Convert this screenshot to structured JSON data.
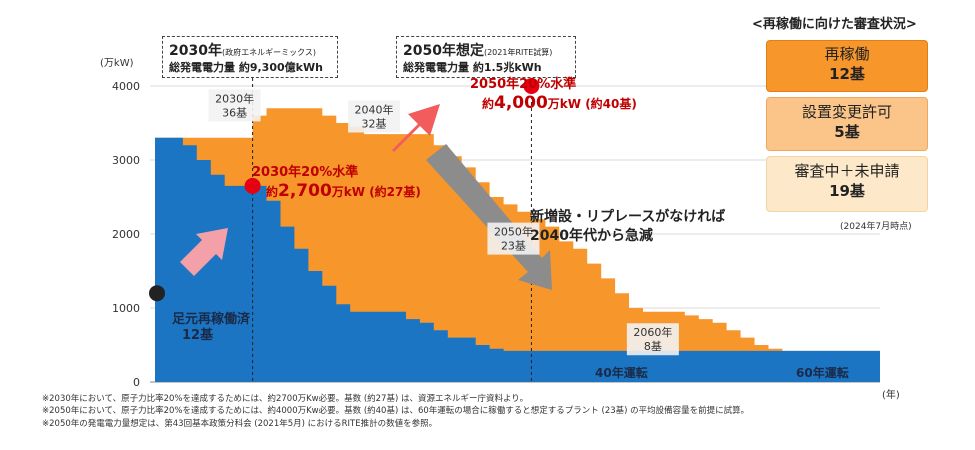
{
  "chart_data": {
    "type": "area",
    "ylabel": "(万kW)",
    "xlabel": "(年)",
    "ylim": [
      0,
      4000
    ],
    "yticks": [
      0,
      1000,
      2000,
      3000,
      4000
    ],
    "grid": true,
    "series": [
      {
        "name": "40年運転",
        "color": "#1b75c2",
        "x": [
          2023,
          2024,
          2025,
          2026,
          2027,
          2028,
          2029,
          2030,
          2031,
          2032,
          2033,
          2034,
          2035,
          2036,
          2037,
          2038,
          2039,
          2040,
          2041,
          2042,
          2043,
          2044,
          2045,
          2046,
          2047,
          2048,
          2049,
          2050,
          2051,
          2052,
          2053,
          2054,
          2055,
          2056,
          2057,
          2058,
          2059,
          2060,
          2061,
          2062,
          2063,
          2064,
          2065,
          2066,
          2067,
          2068,
          2069,
          2070,
          2071,
          2072,
          2073,
          2074,
          2075
        ],
        "values": [
          3300,
          3300,
          3200,
          3000,
          2800,
          2650,
          2650,
          2650,
          2450,
          2100,
          1800,
          1500,
          1300,
          1050,
          950,
          950,
          950,
          950,
          850,
          800,
          700,
          600,
          600,
          500,
          450,
          420,
          420,
          420,
          420,
          420,
          420,
          420,
          420,
          420,
          420,
          420,
          420,
          420,
          420,
          420,
          420,
          420,
          420,
          420,
          420,
          420,
          420,
          420,
          420,
          420,
          420,
          420,
          420
        ]
      },
      {
        "name": "60年運転",
        "color": "#f7962b",
        "x": [
          2023,
          2024,
          2025,
          2026,
          2027,
          2028,
          2029,
          2030,
          2031,
          2032,
          2033,
          2034,
          2035,
          2036,
          2037,
          2038,
          2039,
          2040,
          2041,
          2042,
          2043,
          2044,
          2045,
          2046,
          2047,
          2048,
          2049,
          2050,
          2051,
          2052,
          2053,
          2054,
          2055,
          2056,
          2057,
          2058,
          2059,
          2060,
          2061,
          2062,
          2063,
          2064,
          2065,
          2066,
          2067,
          2068,
          2069,
          2070,
          2071,
          2072,
          2073,
          2074,
          2075
        ],
        "values": [
          3300,
          3300,
          3300,
          3300,
          3300,
          3300,
          3300,
          3600,
          3700,
          3700,
          3700,
          3700,
          3600,
          3500,
          3450,
          3350,
          3350,
          3350,
          3350,
          3350,
          3200,
          3050,
          2900,
          2700,
          2500,
          2400,
          2300,
          2200,
          2100,
          1900,
          1800,
          1600,
          1400,
          1200,
          1000,
          950,
          950,
          950,
          900,
          850,
          800,
          700,
          600,
          500,
          450,
          420,
          420,
          420,
          420,
          420,
          420,
          420,
          0
        ]
      }
    ],
    "markers": [
      {
        "x": 2023,
        "y": 1200,
        "color": "#222222"
      },
      {
        "x": 2030,
        "y": 2650,
        "color": "#e60012"
      },
      {
        "x": 2050,
        "y": 4000,
        "color": "#e60012"
      }
    ],
    "vlines": [
      2030,
      2050
    ],
    "annotations": {
      "plants_2030": {
        "text1": "2030年",
        "text2": "36基",
        "x": 2030
      },
      "plants_2040": {
        "text1": "2040年",
        "text2": "32基",
        "x": 2040
      },
      "plants_2050": {
        "text1": "2050年",
        "text2": "23基",
        "x": 2050
      },
      "plants_2060": {
        "text1": "2060年",
        "text2": "8基",
        "x": 2060
      }
    }
  },
  "callouts": {
    "c2030": {
      "title": "2030年",
      "title_small": "(政府エネルギーミックス)",
      "line2": "総発電電力量 約9,300億kWh"
    },
    "c2050": {
      "title": "2050年想定",
      "title_small": "(2021年RITE試算)",
      "line2": "総発電電力量 約1.5兆kWh"
    }
  },
  "targets": {
    "t2030": {
      "line1": "2030年20%水準",
      "line2_pre": "約",
      "line2_big": "2,700",
      "line2_post": "万kW (約27基)"
    },
    "t2050": {
      "line1": "2050年20%水準",
      "line2_pre": "約",
      "line2_big": "4,000",
      "line2_post": "万kW (約40基)"
    }
  },
  "decline_note": {
    "line1": "新増設・リプレースがなければ",
    "line2": "2040年代から急減"
  },
  "current": {
    "line1": "足元再稼働済",
    "line2": "12基"
  },
  "band_labels": {
    "b40": "40年運転",
    "b60": "60年運転"
  },
  "status_panel": {
    "title": "<再稼働に向けた審査状況>",
    "items": [
      {
        "label": "再稼働",
        "count": "12基",
        "color": "#f7962b"
      },
      {
        "label": "設置変更許可",
        "count": "5基",
        "color": "#fbc58a"
      },
      {
        "label": "審査中＋未申請",
        "count": "19基",
        "color": "#fde9c9"
      }
    ],
    "as_of": "(2024年7月時点)"
  },
  "footnotes": [
    "※2030年において、原子力比率20%を達成するためには、約2700万Kw必要。基数 (約27基) は、資源エネルギー庁資料より。",
    "※2050年において、原子力比率20%を達成するためには、約4000万Kw必要。基数 (約40基) は、60年運転の場合に稼働すると想定するプラント (23基) の平均設備容量を前提に試算。",
    "※2050年の発電電力量想定は、第43回基本政策分科会 (2021年5月) におけるRITE推計の数値を参照。"
  ]
}
